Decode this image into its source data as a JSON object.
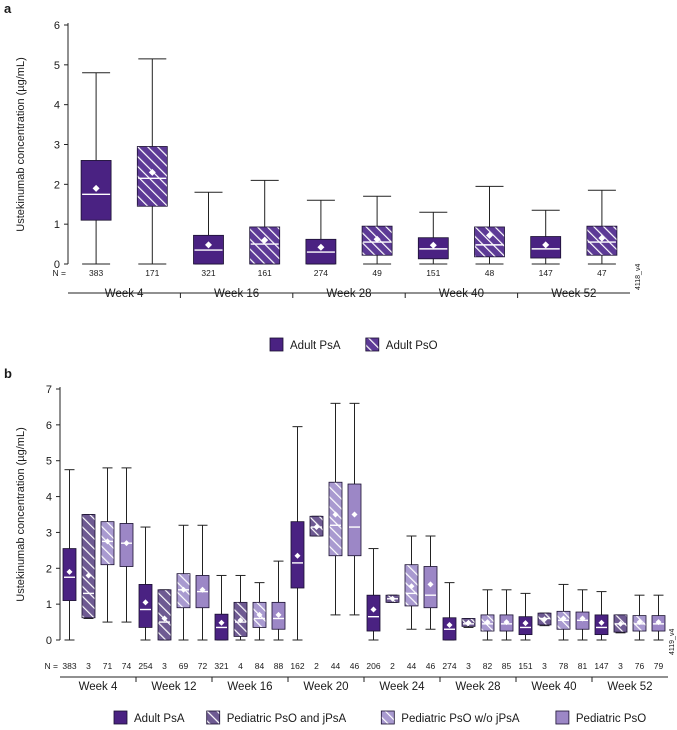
{
  "colors": {
    "adult_psa": "#4a2282",
    "adult_pso": "#5d3a96",
    "ped_pso_jpsa": "#6e5a92",
    "ped_pso_wo_jpsa": "#a99ad0",
    "ped_pso": "#9c87c6",
    "axis": "#222222",
    "median": "#ffffff",
    "mean_marker": "#ffffff"
  },
  "chart_data": [
    {
      "type": "box",
      "panel_label": "a",
      "ylabel": "Ustekinumab concentration (µg/mL)",
      "ylim": [
        0,
        6
      ],
      "yticks": [
        0,
        1,
        2,
        3,
        4,
        5,
        6
      ],
      "n_prefix": "N =",
      "image_tag": "4118_v4",
      "legend": [
        {
          "name": "Adult PsA",
          "pattern": "solid",
          "color_key": "adult_psa"
        },
        {
          "name": "Adult PsO",
          "pattern": "hatch",
          "color_key": "adult_pso"
        }
      ],
      "groups": [
        {
          "label": "Week 4",
          "boxes": [
            {
              "series": "Adult PsA",
              "n": "383",
              "min": 0,
              "q1": 1.1,
              "median": 1.75,
              "q3": 2.6,
              "max": 4.8,
              "mean": 1.9
            },
            {
              "series": "Adult PsO",
              "n": "171",
              "min": 0,
              "q1": 1.45,
              "median": 2.15,
              "q3": 2.95,
              "max": 5.15,
              "mean": 2.3
            }
          ]
        },
        {
          "label": "Week 16",
          "boxes": [
            {
              "series": "Adult PsA",
              "n": "321",
              "min": 0,
              "q1": 0,
              "median": 0.35,
              "q3": 0.72,
              "max": 1.8,
              "mean": 0.48
            },
            {
              "series": "Adult PsO",
              "n": "161",
              "min": 0,
              "q1": 0,
              "median": 0.5,
              "q3": 0.93,
              "max": 2.1,
              "mean": 0.6
            }
          ]
        },
        {
          "label": "Week 28",
          "boxes": [
            {
              "series": "Adult PsA",
              "n": "274",
              "min": 0,
              "q1": 0,
              "median": 0.3,
              "q3": 0.62,
              "max": 1.6,
              "mean": 0.42
            },
            {
              "series": "Adult PsO",
              "n": "49",
              "min": 0,
              "q1": 0.22,
              "median": 0.55,
              "q3": 0.95,
              "max": 1.7,
              "mean": 0.62
            }
          ]
        },
        {
          "label": "Week 40",
          "boxes": [
            {
              "series": "Adult PsA",
              "n": "151",
              "min": 0,
              "q1": 0.13,
              "median": 0.38,
              "q3": 0.66,
              "max": 1.3,
              "mean": 0.47
            },
            {
              "series": "Adult PsO",
              "n": "48",
              "min": 0,
              "q1": 0.18,
              "median": 0.48,
              "q3": 0.93,
              "max": 1.95,
              "mean": 0.72
            }
          ]
        },
        {
          "label": "Week 52",
          "boxes": [
            {
              "series": "Adult PsA",
              "n": "147",
              "min": 0,
              "q1": 0.15,
              "median": 0.38,
              "q3": 0.69,
              "max": 1.35,
              "mean": 0.48
            },
            {
              "series": "Adult PsO",
              "n": "47",
              "min": 0,
              "q1": 0.22,
              "median": 0.55,
              "q3": 0.95,
              "max": 1.85,
              "mean": 0.65
            }
          ]
        }
      ]
    },
    {
      "type": "box",
      "panel_label": "b",
      "ylabel": "Ustekinumab concentration (µg/mL)",
      "ylim": [
        0,
        7
      ],
      "yticks": [
        0,
        1,
        2,
        3,
        4,
        5,
        6,
        7
      ],
      "n_prefix": "N =",
      "image_tag": "4119_v4",
      "legend": [
        {
          "name": "Adult PsA",
          "pattern": "solid",
          "color_key": "adult_psa"
        },
        {
          "name": "Pediatric PsO and jPsA",
          "pattern": "hatch",
          "color_key": "ped_pso_jpsa"
        },
        {
          "name": "Pediatric PsO w/o jPsA",
          "pattern": "hatch",
          "color_key": "ped_pso_wo_jpsa"
        },
        {
          "name": "Pediatric PsO",
          "pattern": "solid",
          "color_key": "ped_pso"
        }
      ],
      "groups": [
        {
          "label": "Week 4",
          "boxes": [
            {
              "series": "Adult PsA",
              "n": "383",
              "min": 0,
              "q1": 1.1,
              "median": 1.75,
              "q3": 2.55,
              "max": 4.75,
              "mean": 1.9
            },
            {
              "series": "Pediatric PsO and jPsA",
              "n": "3",
              "min": 0.6,
              "q1": 0.62,
              "median": 1.3,
              "q3": 3.5,
              "max": 3.5,
              "mean": 1.8
            },
            {
              "series": "Pediatric PsO w/o jPsA",
              "n": "71",
              "min": 0.5,
              "q1": 2.1,
              "median": 2.75,
              "q3": 3.3,
              "max": 4.8,
              "mean": 2.75
            },
            {
              "series": "Pediatric PsO",
              "n": "74",
              "min": 0.5,
              "q1": 2.05,
              "median": 2.7,
              "q3": 3.25,
              "max": 4.8,
              "mean": 2.7
            }
          ]
        },
        {
          "label": "Week 12",
          "boxes": [
            {
              "series": "Adult PsA",
              "n": "254",
              "min": 0,
              "q1": 0.35,
              "median": 0.85,
              "q3": 1.55,
              "max": 3.15,
              "mean": 1.05
            },
            {
              "series": "Pediatric PsO and jPsA",
              "n": "3",
              "min": 0,
              "q1": 0,
              "median": 0.5,
              "q3": 1.4,
              "max": 1.4,
              "mean": 0.6
            },
            {
              "series": "Pediatric PsO w/o jPsA",
              "n": "69",
              "min": 0,
              "q1": 0.9,
              "median": 1.4,
              "q3": 1.85,
              "max": 3.2,
              "mean": 1.4
            },
            {
              "series": "Pediatric PsO",
              "n": "72",
              "min": 0,
              "q1": 0.9,
              "median": 1.35,
              "q3": 1.8,
              "max": 3.2,
              "mean": 1.4
            }
          ]
        },
        {
          "label": "Week 16",
          "boxes": [
            {
              "series": "Adult PsA",
              "n": "321",
              "min": 0,
              "q1": 0,
              "median": 0.35,
              "q3": 0.72,
              "max": 1.8,
              "mean": 0.48
            },
            {
              "series": "Pediatric PsO and jPsA",
              "n": "4",
              "min": 0,
              "q1": 0.1,
              "median": 0.5,
              "q3": 1.05,
              "max": 1.8,
              "mean": 0.55
            },
            {
              "series": "Pediatric PsO w/o jPsA",
              "n": "84",
              "min": 0,
              "q1": 0.35,
              "median": 0.6,
              "q3": 1.05,
              "max": 1.6,
              "mean": 0.7
            },
            {
              "series": "Pediatric PsO",
              "n": "88",
              "min": 0,
              "q1": 0.3,
              "median": 0.6,
              "q3": 1.05,
              "max": 2.2,
              "mean": 0.7
            }
          ]
        },
        {
          "label": "Week 20",
          "boxes": [
            {
              "series": "Adult PsA",
              "n": "162",
              "min": 0,
              "q1": 1.45,
              "median": 2.15,
              "q3": 3.3,
              "max": 5.95,
              "mean": 2.35
            },
            {
              "series": "Pediatric PsO and jPsA",
              "n": "2",
              "min": 2.9,
              "q1": 2.9,
              "median": 3.15,
              "q3": 3.45,
              "max": 3.45,
              "mean": 3.15
            },
            {
              "series": "Pediatric PsO w/o jPsA",
              "n": "44",
              "min": 0.7,
              "q1": 2.35,
              "median": 3.2,
              "q3": 4.4,
              "max": 6.6,
              "mean": 3.5
            },
            {
              "series": "Pediatric PsO",
              "n": "46",
              "min": 0.7,
              "q1": 2.35,
              "median": 3.15,
              "q3": 4.35,
              "max": 6.6,
              "mean": 3.5
            }
          ]
        },
        {
          "label": "Week 24",
          "boxes": [
            {
              "series": "Adult PsA",
              "n": "206",
              "min": 0,
              "q1": 0.25,
              "median": 0.65,
              "q3": 1.25,
              "max": 2.55,
              "mean": 0.85
            },
            {
              "series": "Pediatric PsO and jPsA",
              "n": "2",
              "min": 1.05,
              "q1": 1.05,
              "median": 1.15,
              "q3": 1.25,
              "max": 1.25,
              "mean": 1.15
            },
            {
              "series": "Pediatric PsO w/o jPsA",
              "n": "44",
              "min": 0.3,
              "q1": 0.95,
              "median": 1.3,
              "q3": 2.1,
              "max": 2.9,
              "mean": 1.5
            },
            {
              "series": "Pediatric PsO",
              "n": "46",
              "min": 0.3,
              "q1": 0.9,
              "median": 1.25,
              "q3": 2.05,
              "max": 2.9,
              "mean": 1.55
            }
          ]
        },
        {
          "label": "Week 28",
          "boxes": [
            {
              "series": "Adult PsA",
              "n": "274",
              "min": 0,
              "q1": 0,
              "median": 0.3,
              "q3": 0.62,
              "max": 1.6,
              "mean": 0.42
            },
            {
              "series": "Pediatric PsO and jPsA",
              "n": "3",
              "min": 0.35,
              "q1": 0.38,
              "median": 0.45,
              "q3": 0.6,
              "max": 0.6,
              "mean": 0.48
            },
            {
              "series": "Pediatric PsO w/o jPsA",
              "n": "82",
              "min": 0,
              "q1": 0.25,
              "median": 0.45,
              "q3": 0.7,
              "max": 1.4,
              "mean": 0.5
            },
            {
              "series": "Pediatric PsO",
              "n": "85",
              "min": 0,
              "q1": 0.25,
              "median": 0.45,
              "q3": 0.7,
              "max": 1.4,
              "mean": 0.5
            }
          ]
        },
        {
          "label": "Week 40",
          "boxes": [
            {
              "series": "Adult PsA",
              "n": "151",
              "min": 0,
              "q1": 0.15,
              "median": 0.35,
              "q3": 0.65,
              "max": 1.3,
              "mean": 0.47
            },
            {
              "series": "Pediatric PsO and jPsA",
              "n": "3",
              "min": 0.4,
              "q1": 0.42,
              "median": 0.6,
              "q3": 0.75,
              "max": 0.75,
              "mean": 0.58
            },
            {
              "series": "Pediatric PsO w/o jPsA",
              "n": "78",
              "min": 0,
              "q1": 0.3,
              "median": 0.55,
              "q3": 0.8,
              "max": 1.55,
              "mean": 0.6
            },
            {
              "series": "Pediatric PsO",
              "n": "81",
              "min": 0,
              "q1": 0.3,
              "median": 0.55,
              "q3": 0.78,
              "max": 1.4,
              "mean": 0.6
            }
          ]
        },
        {
          "label": "Week 52",
          "boxes": [
            {
              "series": "Adult PsA",
              "n": "147",
              "min": 0,
              "q1": 0.15,
              "median": 0.35,
              "q3": 0.7,
              "max": 1.35,
              "mean": 0.48
            },
            {
              "series": "Pediatric PsO and jPsA",
              "n": "3",
              "min": 0.2,
              "q1": 0.22,
              "median": 0.45,
              "q3": 0.7,
              "max": 0.7,
              "mean": 0.45
            },
            {
              "series": "Pediatric PsO w/o jPsA",
              "n": "76",
              "min": 0,
              "q1": 0.25,
              "median": 0.45,
              "q3": 0.68,
              "max": 1.25,
              "mean": 0.5
            },
            {
              "series": "Pediatric PsO",
              "n": "79",
              "min": 0,
              "q1": 0.25,
              "median": 0.45,
              "q3": 0.68,
              "max": 1.25,
              "mean": 0.5
            }
          ]
        }
      ]
    }
  ]
}
